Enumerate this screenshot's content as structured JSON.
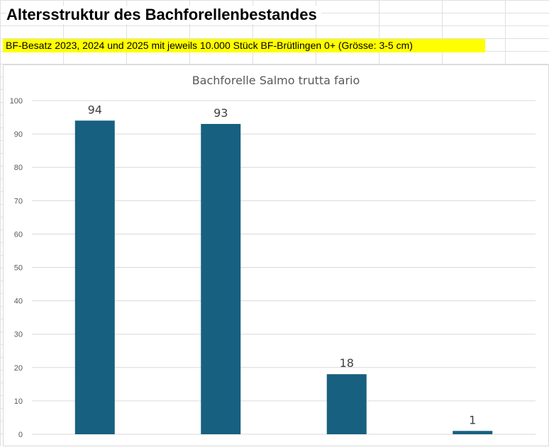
{
  "sheet": {
    "title": "Altersstruktur des Bachforellenbestandes",
    "subtitle": "BF-Besatz 2023, 2024 und 2025 mit jeweils 10.000 Stück BF-Brütlingen 0+ (Grösse: 3-5 cm)",
    "subtitle_highlight_color": "#ffff00"
  },
  "chart_data": {
    "type": "bar",
    "title": "Bachforelle Salmo trutta fario",
    "categories": [
      "",
      "",
      "",
      ""
    ],
    "values": [
      94,
      93,
      18,
      1
    ],
    "data_labels": [
      "94",
      "93",
      "18",
      "1"
    ],
    "ylim": [
      0,
      100
    ],
    "yticks": [
      0,
      10,
      20,
      30,
      40,
      50,
      60,
      70,
      80,
      90,
      100
    ],
    "xlabel": "",
    "ylabel": "",
    "grid": true,
    "bar_color": "#17607f"
  }
}
